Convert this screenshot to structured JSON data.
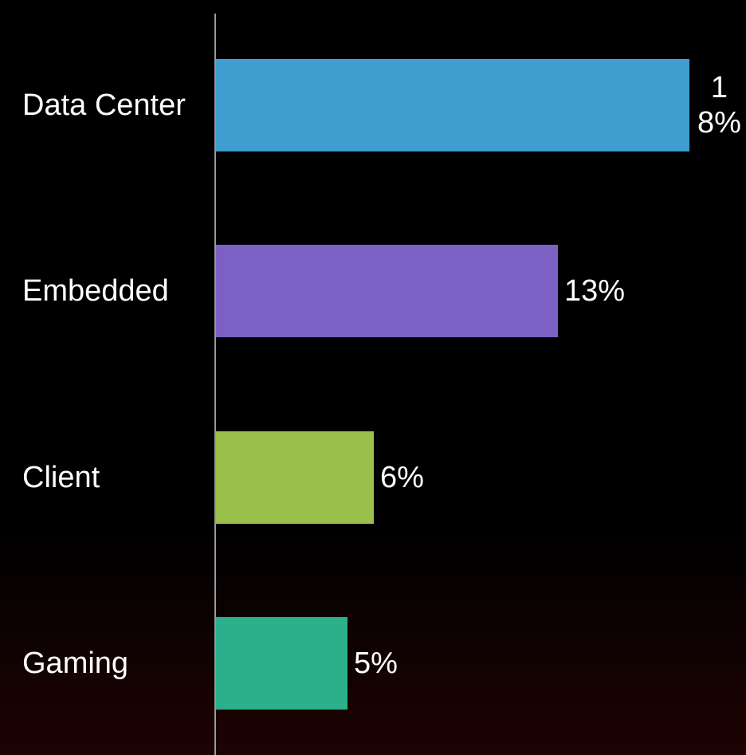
{
  "chart_data": {
    "type": "bar",
    "orientation": "horizontal",
    "categories": [
      "Data Center",
      "Embedded",
      "Client",
      "Gaming"
    ],
    "values": [
      18,
      13,
      6,
      5
    ],
    "value_labels": [
      "18%",
      "13%",
      "6%",
      "5%"
    ],
    "colors": [
      "#3f9dd0",
      "#7c60c4",
      "#9bbf4b",
      "#2bb08b"
    ]
  }
}
